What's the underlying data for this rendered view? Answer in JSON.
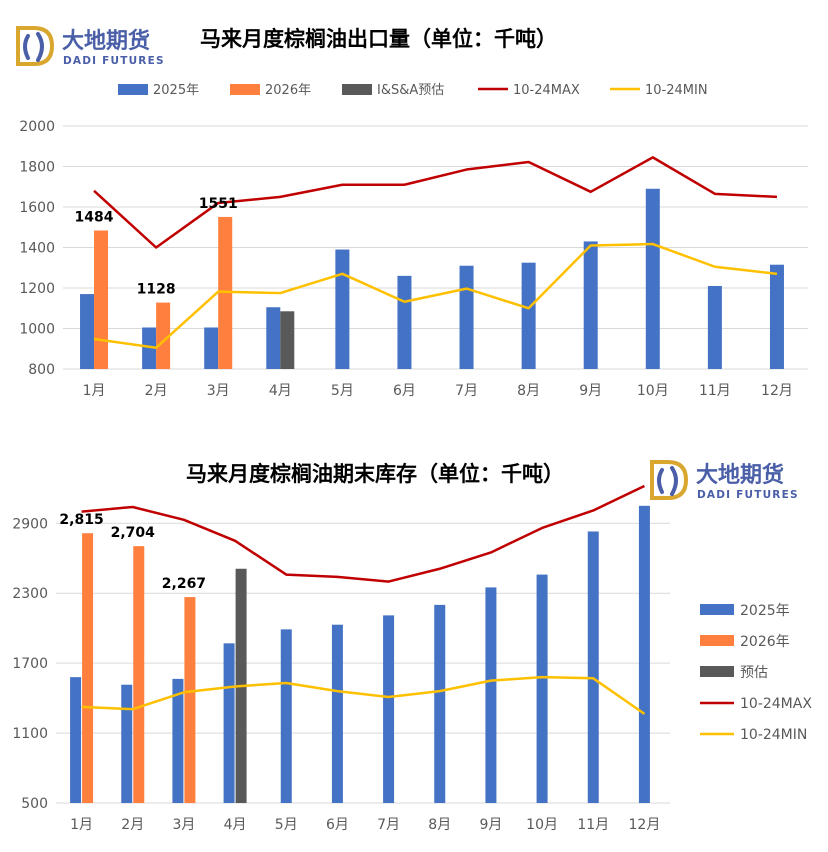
{
  "brand": {
    "name_cn": "大地期货",
    "name_en": "DADI FUTURES",
    "gold": "#D9A62E",
    "blue": "#4A5FA8"
  },
  "colors": {
    "y2025": "#4472C4",
    "y2026": "#FF7F3F",
    "estimate": "#595959",
    "max": "#C00000",
    "min": "#FFC000",
    "grid": "#D9D9D9",
    "axis_text": "#595959"
  },
  "chart_data": [
    {
      "type": "bar",
      "title": "马来月度棕榈油出口量（单位：千吨）",
      "categories": [
        "1月",
        "2月",
        "3月",
        "4月",
        "5月",
        "6月",
        "7月",
        "8月",
        "9月",
        "10月",
        "11月",
        "12月"
      ],
      "ylim": [
        800,
        2000
      ],
      "yticks": [
        800,
        1000,
        1200,
        1400,
        1600,
        1800,
        2000
      ],
      "grid": true,
      "legend_position": "top",
      "series": [
        {
          "name": "2025年",
          "kind": "bar",
          "color": "#4472C4",
          "values": [
            1170,
            1005,
            1005,
            1105,
            1390,
            1260,
            1310,
            1325,
            1430,
            1690,
            1210,
            1315
          ]
        },
        {
          "name": "2026年",
          "kind": "bar",
          "color": "#FF7F3F",
          "values": [
            1484,
            1128,
            1551,
            null,
            null,
            null,
            null,
            null,
            null,
            null,
            null,
            null
          ]
        },
        {
          "name": "I&S&A预估",
          "kind": "bar",
          "color": "#595959",
          "values": [
            null,
            null,
            null,
            1085,
            null,
            null,
            null,
            null,
            null,
            null,
            null,
            null
          ]
        },
        {
          "name": "10-24MAX",
          "kind": "line",
          "color": "#C00000",
          "values": [
            1680,
            1400,
            1620,
            1650,
            1710,
            1710,
            1785,
            1822,
            1675,
            1845,
            1665,
            1650
          ]
        },
        {
          "name": "10-24MIN",
          "kind": "line",
          "color": "#FFC000",
          "values": [
            948,
            905,
            1182,
            1175,
            1270,
            1132,
            1197,
            1100,
            1410,
            1417,
            1305,
            1270
          ]
        }
      ],
      "data_labels": [
        {
          "series": "2026年",
          "index": 0,
          "text": "1484"
        },
        {
          "series": "2026年",
          "index": 1,
          "text": "1128"
        },
        {
          "series": "2026年",
          "index": 2,
          "text": "1551"
        }
      ]
    },
    {
      "type": "bar",
      "title": "马来月度棕榈油期末库存（单位：千吨）",
      "categories": [
        "1月",
        "2月",
        "3月",
        "4月",
        "5月",
        "6月",
        "7月",
        "8月",
        "9月",
        "10月",
        "11月",
        "12月"
      ],
      "ylim": [
        500,
        3100
      ],
      "yticks": [
        500,
        1100,
        1700,
        2300,
        2900
      ],
      "grid": true,
      "legend_position": "right",
      "series": [
        {
          "name": "2025年",
          "kind": "bar",
          "color": "#4472C4",
          "values": [
            1580,
            1515,
            1565,
            1870,
            1990,
            2030,
            2110,
            2200,
            2350,
            2460,
            2830,
            3050
          ]
        },
        {
          "name": "2026年",
          "kind": "bar",
          "color": "#FF7F3F",
          "values": [
            2815,
            2704,
            2267,
            null,
            null,
            null,
            null,
            null,
            null,
            null,
            null,
            null
          ]
        },
        {
          "name": "预估",
          "kind": "bar",
          "color": "#595959",
          "values": [
            null,
            null,
            null,
            2510,
            null,
            null,
            null,
            null,
            null,
            null,
            null,
            null
          ]
        },
        {
          "name": "10-24MAX",
          "kind": "line",
          "color": "#C00000",
          "values": [
            3000,
            3040,
            2930,
            2750,
            2460,
            2440,
            2400,
            2510,
            2650,
            2860,
            3010,
            3220
          ]
        },
        {
          "name": "10-24MIN",
          "kind": "line",
          "color": "#FFC000",
          "values": [
            1325,
            1305,
            1450,
            1500,
            1530,
            1460,
            1410,
            1460,
            1550,
            1580,
            1570,
            1265
          ]
        }
      ],
      "data_labels": [
        {
          "series": "2026年",
          "index": 0,
          "text": "2,815"
        },
        {
          "series": "2026年",
          "index": 1,
          "text": "2,704"
        },
        {
          "series": "2026年",
          "index": 2,
          "text": "2,267"
        }
      ]
    }
  ]
}
